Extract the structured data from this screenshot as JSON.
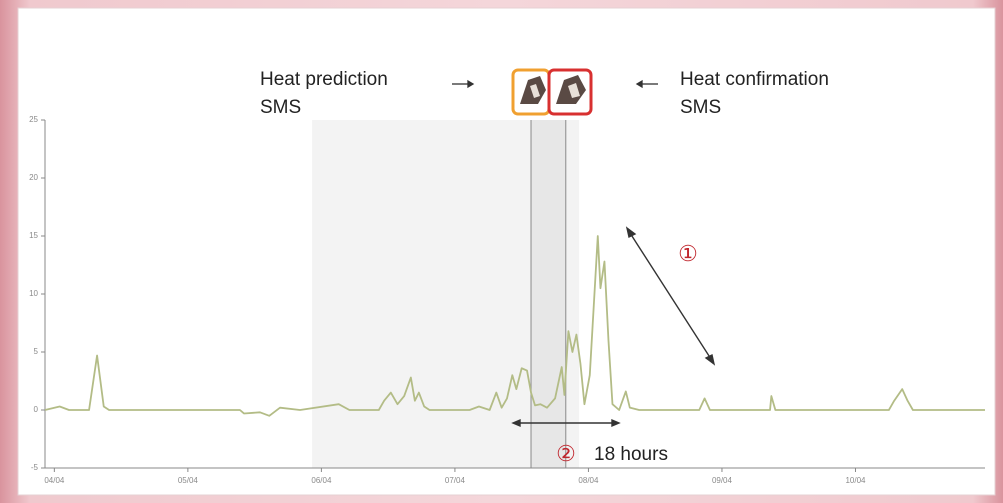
{
  "chart_data": {
    "type": "line",
    "x": [
      -0.07,
      0.04,
      0.11,
      0.26,
      0.32,
      0.37,
      0.41,
      1.39,
      1.42,
      1.54,
      1.61,
      1.69,
      1.84,
      2.13,
      2.21,
      2.43,
      2.47,
      2.52,
      2.57,
      2.62,
      2.67,
      2.7,
      2.73,
      2.77,
      2.81,
      3.11,
      3.18,
      3.26,
      3.31,
      3.35,
      3.39,
      3.43,
      3.46,
      3.5,
      3.54,
      3.57,
      3.6,
      3.64,
      3.69,
      3.75,
      3.8,
      3.82,
      3.85,
      3.88,
      3.91,
      3.94,
      3.97,
      4.01,
      4.07,
      4.09,
      4.12,
      4.15,
      4.18,
      4.23,
      4.28,
      4.31,
      4.38,
      4.83,
      4.87,
      4.91,
      5.36,
      5.37,
      5.4,
      6.25,
      6.29,
      6.35,
      6.39,
      6.43,
      6.55,
      6.97
    ],
    "values": [
      0,
      0.3,
      0,
      0,
      4.7,
      0.3,
      0,
      0,
      -0.3,
      -0.2,
      -0.5,
      0.2,
      0,
      0.5,
      0,
      0,
      0.8,
      1.5,
      0.5,
      1.2,
      2.8,
      0.8,
      1.5,
      0.3,
      0,
      0,
      0.3,
      0,
      1.5,
      0.2,
      1.0,
      3.0,
      1.8,
      3.6,
      3.4,
      1.5,
      0.4,
      0.5,
      0.2,
      1.0,
      3.7,
      1.3,
      6.8,
      5.0,
      6.5,
      4.0,
      0.5,
      3.0,
      15.0,
      10.5,
      12.8,
      6.0,
      0.5,
      0,
      1.6,
      0.2,
      0,
      0,
      1.0,
      0,
      0,
      1.2,
      0,
      0,
      0.8,
      1.8,
      0.8,
      0,
      0,
      0
    ],
    "color": "#b3bc86",
    "xlim": [
      -0.07,
      6.97
    ],
    "xticks": [
      {
        "value": 0,
        "label": "04/04"
      },
      {
        "value": 1,
        "label": "05/04"
      },
      {
        "value": 2,
        "label": "06/04"
      },
      {
        "value": 3,
        "label": "07/04"
      },
      {
        "value": 4,
        "label": "08/04"
      },
      {
        "value": 5,
        "label": "09/04"
      },
      {
        "value": 6,
        "label": "10/04"
      }
    ],
    "ylim": [
      -5,
      25
    ],
    "yticks": [
      -5,
      0,
      5,
      10,
      15,
      20,
      25
    ],
    "shaded_region": [
      1.93,
      3.93
    ],
    "sms_band": [
      3.57,
      3.83
    ],
    "annotations": {
      "prediction": [
        "Heat prediction",
        "SMS"
      ],
      "confirmation": [
        "Heat confirmation",
        "SMS"
      ],
      "marker_1": "①",
      "marker_2": "②",
      "duration": "18 hours"
    }
  }
}
